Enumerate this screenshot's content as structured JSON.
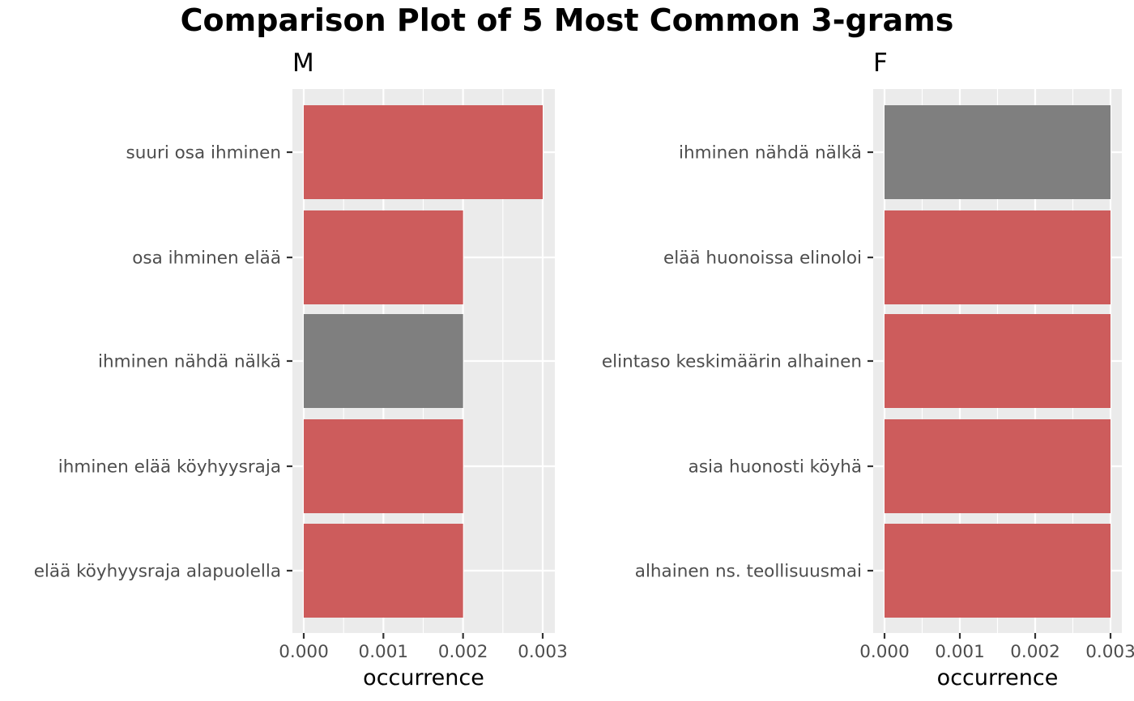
{
  "chart_data": {
    "type": "bar",
    "orientation": "horizontal",
    "title": "Comparison Plot of 5 Most Common 3-grams",
    "xlabel": "occurrence",
    "x_ticks": [
      "0.000",
      "0.001",
      "0.002",
      "0.003"
    ],
    "xlim": [
      0,
      0.003
    ],
    "grid": true,
    "colors": {
      "highlight": "#cd5c5c",
      "shared": "#7f7f7f",
      "panel": "#ebebeb",
      "grid": "#ffffff"
    },
    "panels": [
      {
        "label": "M",
        "categories": [
          "suuri osa ihminen",
          "osa ihminen elää",
          "ihminen nähdä nälkä",
          "ihminen elää köyhyysraja",
          "elää köyhyysraja alapuolella"
        ],
        "values": [
          0.003,
          0.002,
          0.002,
          0.002,
          0.002
        ],
        "color_keys": [
          "highlight",
          "highlight",
          "shared",
          "highlight",
          "highlight"
        ]
      },
      {
        "label": "F",
        "categories": [
          "ihminen nähdä nälkä",
          "elää huonoissa elinoloi",
          "elintaso keskimäärin alhainen",
          "asia huonosti köyhä",
          "alhainen ns. teollisuusmai"
        ],
        "values": [
          0.003,
          0.003,
          0.003,
          0.003,
          0.003
        ],
        "color_keys": [
          "shared",
          "highlight",
          "highlight",
          "highlight",
          "highlight"
        ]
      }
    ]
  }
}
